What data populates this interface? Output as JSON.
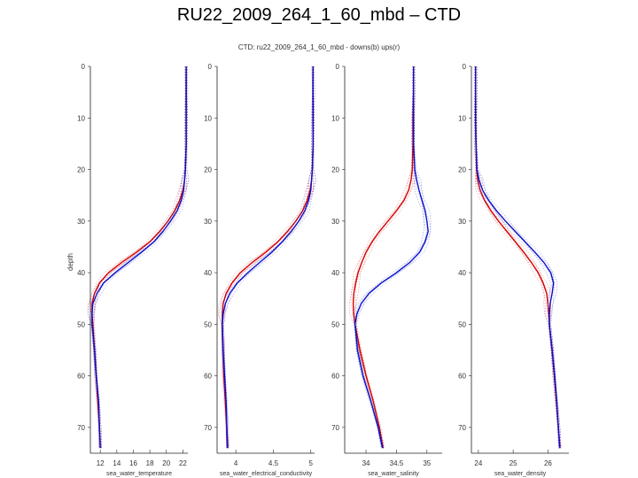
{
  "slide_title": "RU22_2009_264_1_60_mbd – CTD",
  "colors": {
    "downcast": "#d40000",
    "upcast": "#0a10c8",
    "axis": "#222222"
  },
  "chart_data": {
    "title": "CTD: ru22_2009_264_1_60_mbd - downs(b) ups(r)",
    "ylabel": "depth",
    "ylim": [
      0,
      75
    ],
    "yticks": [
      0,
      10,
      20,
      30,
      40,
      50,
      60,
      70
    ],
    "panels": [
      {
        "type": "line",
        "xlabel": "sea_water_temperature",
        "xlim": [
          10.8,
          22.6
        ],
        "xticks": [
          12,
          14,
          16,
          18,
          20,
          22
        ],
        "series": [
          {
            "name": "downcast",
            "color": "#d40000",
            "depth": [
              0,
              5,
              10,
              15,
              20,
              22,
              24,
              26,
              28,
              30,
              32,
              34,
              36,
              38,
              40,
              42,
              44,
              46,
              48,
              50,
              55,
              60,
              65,
              70,
              74
            ],
            "values": [
              22.4,
              22.4,
              22.4,
              22.4,
              22.3,
              22.2,
              22.0,
              21.6,
              21.0,
              20.2,
              19.2,
              18.0,
              16.4,
              14.6,
              13.0,
              11.9,
              11.3,
              11.0,
              11.0,
              11.1,
              11.3,
              11.5,
              11.7,
              11.9,
              12.0
            ]
          },
          {
            "name": "upcast",
            "color": "#0a10c8",
            "depth": [
              0,
              5,
              10,
              15,
              20,
              22,
              24,
              26,
              28,
              30,
              32,
              34,
              36,
              38,
              40,
              42,
              44,
              46,
              48,
              50,
              55,
              60,
              65,
              70,
              74
            ],
            "values": [
              22.4,
              22.4,
              22.4,
              22.4,
              22.3,
              22.2,
              22.1,
              21.8,
              21.3,
              20.5,
              19.6,
              18.5,
              17.0,
              15.4,
              13.8,
              12.4,
              11.6,
              11.1,
              11.0,
              11.0,
              11.3,
              11.5,
              11.8,
              11.9,
              12.0
            ]
          }
        ]
      },
      {
        "type": "line",
        "xlabel": "sea_water_electrical_conductivity",
        "xlim": [
          3.75,
          5.05
        ],
        "xticks": [
          4,
          4.5,
          5
        ],
        "xtick_labels": [
          "4",
          "4.5",
          "5"
        ],
        "series": [
          {
            "name": "downcast",
            "color": "#d40000",
            "depth": [
              0,
              5,
              10,
              15,
              20,
              22,
              24,
              26,
              28,
              30,
              32,
              34,
              36,
              38,
              40,
              42,
              44,
              46,
              48,
              50,
              55,
              60,
              65,
              70,
              74
            ],
            "values": [
              5.03,
              5.03,
              5.03,
              5.03,
              5.02,
              5.01,
              4.99,
              4.95,
              4.89,
              4.8,
              4.69,
              4.56,
              4.4,
              4.22,
              4.06,
              3.95,
              3.87,
              3.83,
              3.82,
              3.82,
              3.83,
              3.84,
              3.86,
              3.88,
              3.89
            ]
          },
          {
            "name": "upcast",
            "color": "#0a10c8",
            "depth": [
              0,
              5,
              10,
              15,
              20,
              22,
              24,
              26,
              28,
              30,
              32,
              34,
              36,
              38,
              40,
              42,
              44,
              46,
              48,
              50,
              55,
              60,
              65,
              70,
              74
            ],
            "values": [
              5.03,
              5.03,
              5.03,
              5.03,
              5.02,
              5.01,
              5.0,
              4.97,
              4.92,
              4.84,
              4.74,
              4.62,
              4.48,
              4.32,
              4.16,
              4.02,
              3.92,
              3.86,
              3.83,
              3.82,
              3.83,
              3.85,
              3.87,
              3.88,
              3.89
            ]
          }
        ]
      },
      {
        "type": "line",
        "xlabel": "sea_water_salinity",
        "xlim": [
          33.65,
          35.25
        ],
        "xticks": [
          34,
          34.5,
          35
        ],
        "xtick_labels": [
          "34",
          "34.5",
          "35"
        ],
        "series": [
          {
            "name": "downcast",
            "color": "#d40000",
            "depth": [
              0,
              5,
              10,
              15,
              20,
              22,
              24,
              26,
              28,
              30,
              32,
              34,
              36,
              38,
              40,
              42,
              44,
              46,
              48,
              50,
              55,
              60,
              65,
              70,
              74
            ],
            "values": [
              34.78,
              34.78,
              34.77,
              34.77,
              34.76,
              34.74,
              34.7,
              34.62,
              34.5,
              34.36,
              34.22,
              34.1,
              34.0,
              33.93,
              33.87,
              33.83,
              33.8,
              33.79,
              33.8,
              33.82,
              33.9,
              34.0,
              34.12,
              34.22,
              34.28
            ]
          },
          {
            "name": "upcast",
            "color": "#0a10c8",
            "depth": [
              0,
              5,
              10,
              15,
              20,
              22,
              24,
              26,
              28,
              30,
              32,
              34,
              36,
              38,
              40,
              42,
              44,
              46,
              48,
              50,
              55,
              60,
              65,
              70,
              74
            ],
            "values": [
              34.78,
              34.78,
              34.78,
              34.78,
              34.8,
              34.83,
              34.87,
              34.92,
              34.97,
              35.0,
              35.02,
              34.97,
              34.88,
              34.72,
              34.5,
              34.25,
              34.05,
              33.92,
              33.85,
              33.82,
              33.86,
              33.95,
              34.08,
              34.2,
              34.27
            ]
          }
        ]
      },
      {
        "type": "line",
        "xlabel": "sea_water_density",
        "xlim": [
          23.8,
          26.6
        ],
        "xticks": [
          24,
          25,
          26
        ],
        "xtick_labels": [
          "24",
          "25",
          "26"
        ],
        "series": [
          {
            "name": "downcast",
            "color": "#d40000",
            "depth": [
              0,
              5,
              10,
              15,
              20,
              22,
              24,
              26,
              28,
              30,
              32,
              34,
              36,
              38,
              40,
              42,
              44,
              46,
              48,
              50,
              55,
              60,
              65,
              70,
              74
            ],
            "values": [
              23.92,
              23.92,
              23.92,
              23.93,
              23.95,
              23.98,
              24.05,
              24.18,
              24.36,
              24.58,
              24.82,
              25.06,
              25.3,
              25.52,
              25.72,
              25.86,
              25.96,
              26.0,
              26.02,
              26.04,
              26.12,
              26.18,
              26.24,
              26.3,
              26.34
            ]
          },
          {
            "name": "upcast",
            "color": "#0a10c8",
            "depth": [
              0,
              5,
              10,
              15,
              20,
              22,
              24,
              26,
              28,
              30,
              32,
              34,
              36,
              38,
              40,
              42,
              44,
              46,
              48,
              50,
              55,
              60,
              65,
              70,
              74
            ],
            "values": [
              23.92,
              23.92,
              23.92,
              23.93,
              23.96,
              24.02,
              24.12,
              24.3,
              24.52,
              24.78,
              25.06,
              25.34,
              25.62,
              25.88,
              26.08,
              26.16,
              26.12,
              26.06,
              26.04,
              26.04,
              26.12,
              26.19,
              26.25,
              26.3,
              26.34
            ]
          }
        ]
      }
    ]
  }
}
